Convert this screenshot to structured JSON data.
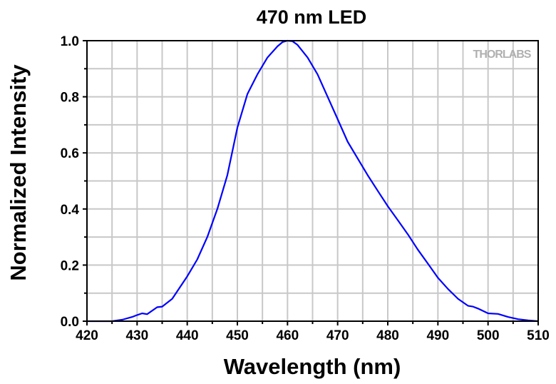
{
  "chart_data": {
    "type": "line",
    "title": "470 nm LED",
    "xlabel": "Wavelength (nm)",
    "ylabel": "Normalized Intensity",
    "xlim": [
      420,
      510
    ],
    "ylim": [
      0,
      1.0
    ],
    "xticks": [
      "420",
      "430",
      "440",
      "450",
      "460",
      "470",
      "480",
      "490",
      "500",
      "510"
    ],
    "yticks": [
      "0.0",
      "0.2",
      "0.4",
      "0.6",
      "0.8",
      "1.0"
    ],
    "grid": true,
    "line_color": "#0000ff",
    "watermark": "THORLABS",
    "series": [
      {
        "x": [
          420,
          425,
          427,
          429,
          430,
          431,
          432,
          434,
          435,
          437,
          440,
          442,
          444,
          446,
          448,
          450,
          452,
          454,
          456,
          458,
          459,
          460,
          461,
          462,
          464,
          466,
          468,
          470,
          472,
          474,
          476,
          478,
          480,
          482,
          484,
          486,
          488,
          490,
          492,
          494,
          496,
          497,
          498,
          500,
          502,
          504,
          506,
          508,
          510
        ],
        "y": [
          0,
          0,
          0.005,
          0.015,
          0.022,
          0.028,
          0.025,
          0.05,
          0.052,
          0.08,
          0.16,
          0.22,
          0.3,
          0.4,
          0.52,
          0.69,
          0.81,
          0.88,
          0.94,
          0.98,
          0.995,
          1.0,
          0.998,
          0.985,
          0.94,
          0.88,
          0.8,
          0.72,
          0.64,
          0.58,
          0.52,
          0.465,
          0.41,
          0.36,
          0.31,
          0.255,
          0.205,
          0.155,
          0.115,
          0.08,
          0.055,
          0.052,
          0.045,
          0.028,
          0.026,
          0.015,
          0.007,
          0.003,
          0
        ]
      }
    ]
  }
}
